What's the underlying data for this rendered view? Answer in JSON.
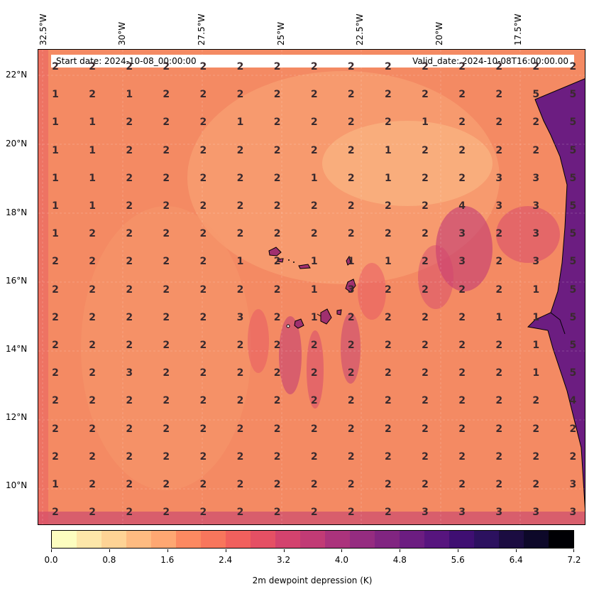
{
  "header": {
    "start_date": "Start date: 2024-10-08_00:00:00",
    "valid_date": "Valid_date: 2024-10-08T16:00:00.00"
  },
  "axes": {
    "lon_ticks": [
      "32.5°W",
      "30°W",
      "27.5°W",
      "25°W",
      "22.5°W",
      "20°W",
      "17.5°W"
    ],
    "lat_ticks": [
      "22°N",
      "20°N",
      "18°N",
      "16°N",
      "14°N",
      "12°N",
      "10°N"
    ]
  },
  "grid_values": [
    [
      "2",
      "2",
      "2",
      "2",
      "2",
      "2",
      "2",
      "2",
      "2",
      "2",
      "2",
      "2",
      "2",
      "2",
      "2"
    ],
    [
      "1",
      "2",
      "1",
      "2",
      "2",
      "2",
      "2",
      "2",
      "2",
      "2",
      "2",
      "2",
      "2",
      "5",
      "5"
    ],
    [
      "1",
      "1",
      "2",
      "2",
      "2",
      "1",
      "2",
      "2",
      "2",
      "2",
      "1",
      "2",
      "2",
      "2",
      "5"
    ],
    [
      "1",
      "1",
      "2",
      "2",
      "2",
      "2",
      "2",
      "2",
      "2",
      "1",
      "2",
      "2",
      "2",
      "2",
      "5"
    ],
    [
      "1",
      "1",
      "2",
      "2",
      "2",
      "2",
      "2",
      "1",
      "2",
      "1",
      "2",
      "2",
      "3",
      "3",
      "5"
    ],
    [
      "1",
      "1",
      "2",
      "2",
      "2",
      "2",
      "2",
      "2",
      "2",
      "2",
      "2",
      "4",
      "3",
      "3",
      "5"
    ],
    [
      "1",
      "2",
      "2",
      "2",
      "2",
      "2",
      "2",
      "2",
      "2",
      "2",
      "2",
      "3",
      "2",
      "3",
      "5"
    ],
    [
      "2",
      "2",
      "2",
      "2",
      "2",
      "1",
      "2",
      "1",
      "1",
      "1",
      "2",
      "3",
      "2",
      "3",
      "5"
    ],
    [
      "2",
      "2",
      "2",
      "2",
      "2",
      "2",
      "2",
      "1",
      "3",
      "2",
      "2",
      "2",
      "2",
      "1",
      "5"
    ],
    [
      "2",
      "2",
      "2",
      "2",
      "2",
      "3",
      "2",
      "1",
      "2",
      "2",
      "2",
      "2",
      "1",
      "1",
      "5"
    ],
    [
      "2",
      "2",
      "2",
      "2",
      "2",
      "2",
      "2",
      "2",
      "2",
      "2",
      "2",
      "2",
      "2",
      "1",
      "5"
    ],
    [
      "2",
      "2",
      "3",
      "2",
      "2",
      "2",
      "2",
      "2",
      "2",
      "2",
      "2",
      "2",
      "2",
      "1",
      "5"
    ],
    [
      "2",
      "2",
      "2",
      "2",
      "2",
      "2",
      "2",
      "2",
      "2",
      "2",
      "2",
      "2",
      "2",
      "2",
      "4"
    ],
    [
      "2",
      "2",
      "2",
      "2",
      "2",
      "2",
      "2",
      "2",
      "2",
      "2",
      "2",
      "2",
      "2",
      "2",
      "2"
    ],
    [
      "2",
      "2",
      "2",
      "2",
      "2",
      "2",
      "2",
      "2",
      "2",
      "2",
      "2",
      "2",
      "2",
      "2",
      "2"
    ],
    [
      "1",
      "2",
      "2",
      "2",
      "2",
      "2",
      "2",
      "2",
      "2",
      "2",
      "2",
      "2",
      "2",
      "2",
      "3"
    ],
    [
      "2",
      "2",
      "2",
      "2",
      "2",
      "2",
      "2",
      "2",
      "2",
      "2",
      "3",
      "3",
      "3",
      "3",
      "3"
    ]
  ],
  "colorbar": {
    "title": "2m dewpoint depression (K)",
    "tick_labels": [
      "0.0",
      "0.8",
      "1.6",
      "2.4",
      "3.2",
      "4.0",
      "4.8",
      "5.6",
      "6.4",
      "7.2"
    ],
    "range": [
      0.0,
      7.2
    ],
    "colormap": "magma_r",
    "colors": [
      "#fcfdbf",
      "#fde7a9",
      "#fed395",
      "#febb81",
      "#fea772",
      "#fc8961",
      "#f8765c",
      "#f1605d",
      "#e55064",
      "#d3436e",
      "#c13b75",
      "#ab337c",
      "#952c80",
      "#812581",
      "#6c1d81",
      "#57157e",
      "#3f0f72",
      "#2c115f",
      "#1b0c41",
      "#0d0829",
      "#000004"
    ]
  }
}
